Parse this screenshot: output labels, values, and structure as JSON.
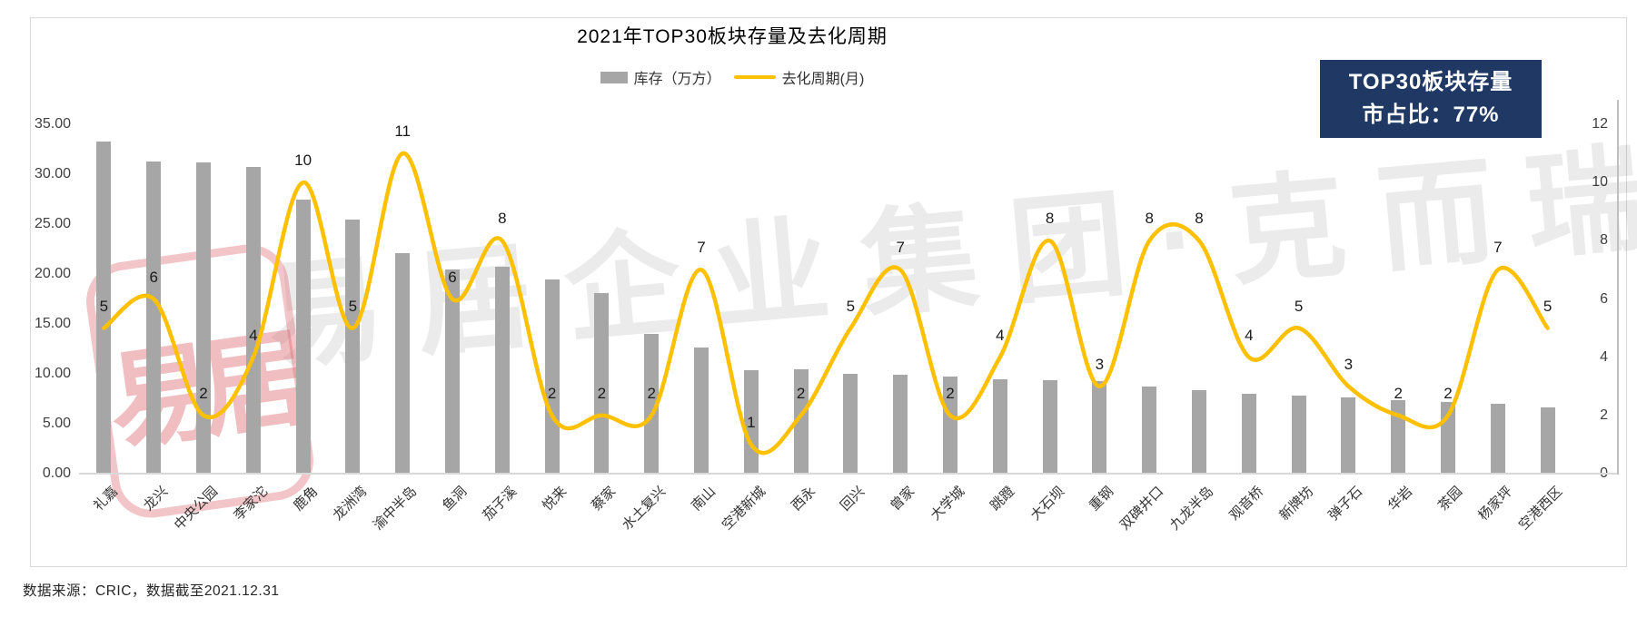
{
  "title": "2021年TOP30板块存量及去化周期",
  "legend": {
    "bar_label": "库存（万方）",
    "line_label": "去化周期(月)"
  },
  "badge": {
    "line1": "TOP30板块存量",
    "line2": "市占比：77%"
  },
  "source": "数据来源：CRIC，数据截至2021.12.31",
  "watermark": {
    "text": "易居企业集团·克而瑞",
    "stamp": "易居"
  },
  "colors": {
    "bar": "#A6A6A6",
    "line": "#FFC000",
    "badge_bg": "#1F3864",
    "axis_line": "#D9D9D9",
    "right_axis_line": "#BFBFBF"
  },
  "chart_data": {
    "type": "bar+line combo",
    "title": "2021年TOP30板块存量及去化周期",
    "categories": [
      "礼嘉",
      "龙兴",
      "中央公园",
      "李家沱",
      "鹿角",
      "龙洲湾",
      "渝中半岛",
      "鱼洞",
      "茄子溪",
      "悦来",
      "蔡家",
      "水土复兴",
      "南山",
      "空港新城",
      "西永",
      "回兴",
      "曾家",
      "大学城",
      "跳蹬",
      "大石坝",
      "重钢",
      "双碑井口",
      "九龙半岛",
      "观音桥",
      "新牌坊",
      "弹子石",
      "华岩",
      "茶园",
      "杨家坪",
      "空港西区"
    ],
    "series": [
      {
        "name": "库存（万方）",
        "type": "bar",
        "axis": "left",
        "values": [
          33.3,
          31.3,
          31.2,
          30.7,
          27.5,
          25.5,
          22.1,
          20.5,
          20.7,
          19.5,
          18.1,
          14.0,
          12.6,
          10.4,
          10.5,
          10.0,
          9.9,
          9.7,
          9.5,
          9.4,
          9.3,
          8.7,
          8.4,
          8.0,
          7.8,
          7.6,
          7.4,
          7.2,
          7.0,
          6.6
        ]
      },
      {
        "name": "去化周期(月)",
        "type": "line",
        "axis": "right",
        "values": [
          5,
          6,
          2,
          4,
          10,
          5,
          11,
          6,
          8,
          2,
          2,
          2,
          7,
          1,
          2,
          5,
          7,
          2,
          4,
          8,
          3,
          8,
          8,
          4,
          5,
          3,
          2,
          2,
          7,
          5
        ],
        "data_labels": true
      }
    ],
    "left_axis": {
      "tick_labels": [
        "35.00",
        "30.00",
        "25.00",
        "20.00",
        "15.00",
        "10.00",
        "5.00",
        "0.00"
      ],
      "min": 0,
      "max": 35
    },
    "right_axis": {
      "tick_labels": [
        "12",
        "10",
        "8",
        "6",
        "4",
        "2",
        "0"
      ],
      "min": 0,
      "max": 12
    },
    "grid": false,
    "legend_position": "top-center"
  }
}
